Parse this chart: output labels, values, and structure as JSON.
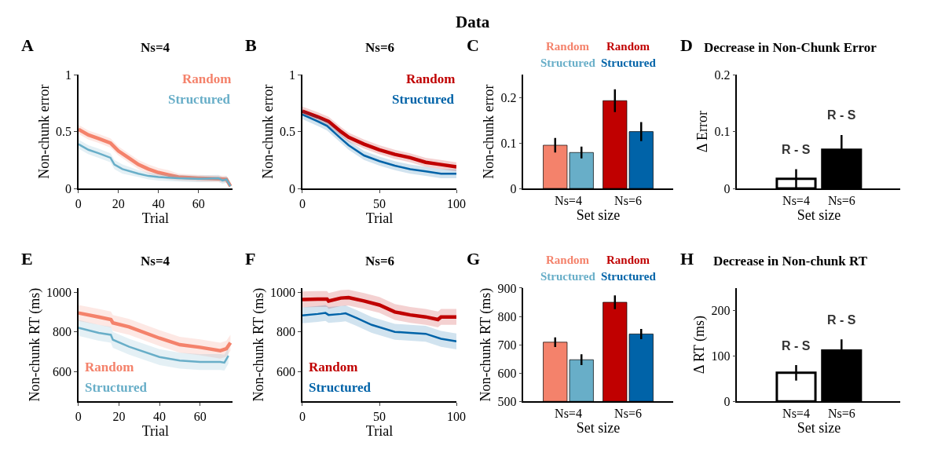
{
  "chart_data": [
    {
      "type": "line",
      "title": "Ns=4",
      "xlabel": "Trial",
      "ylabel": "Non-chunk error",
      "annotations": [
        "A",
        "Data"
      ],
      "legend": "top right",
      "xlim": [
        0,
        77
      ],
      "xticks": [
        0,
        20,
        40,
        60
      ],
      "ylim": [
        0,
        1
      ],
      "yticks": [
        0,
        0.5,
        1
      ],
      "series": [
        {
          "name": "Random",
          "color": "#f4826b",
          "x": [
            0,
            5,
            10,
            16,
            20,
            25,
            30,
            35,
            40,
            45,
            50,
            60,
            70,
            74,
            76
          ],
          "values": [
            0.52,
            0.47,
            0.44,
            0.4,
            0.33,
            0.27,
            0.21,
            0.17,
            0.14,
            0.12,
            0.1,
            0.09,
            0.085,
            0.08,
            0.02
          ],
          "lower": [
            0.48,
            0.43,
            0.4,
            0.36,
            0.29,
            0.23,
            0.17,
            0.13,
            0.1,
            0.08,
            0.07,
            0.06,
            0.055,
            0.05,
            0.0
          ],
          "upper": [
            0.56,
            0.51,
            0.48,
            0.44,
            0.37,
            0.31,
            0.25,
            0.21,
            0.18,
            0.16,
            0.13,
            0.12,
            0.115,
            0.11,
            0.05
          ]
        },
        {
          "name": "Structured",
          "color": "#68aec8",
          "x": [
            0,
            5,
            10,
            16,
            18,
            22,
            30,
            35,
            40,
            50,
            60,
            70,
            72,
            74,
            76
          ],
          "values": [
            0.39,
            0.34,
            0.31,
            0.27,
            0.21,
            0.17,
            0.13,
            0.11,
            0.1,
            0.09,
            0.085,
            0.09,
            0.07,
            0.08,
            0.02
          ],
          "lower": [
            0.35,
            0.3,
            0.27,
            0.23,
            0.17,
            0.13,
            0.1,
            0.08,
            0.07,
            0.06,
            0.055,
            0.06,
            0.04,
            0.05,
            0.0
          ],
          "upper": [
            0.43,
            0.38,
            0.35,
            0.31,
            0.25,
            0.21,
            0.16,
            0.14,
            0.13,
            0.12,
            0.115,
            0.12,
            0.1,
            0.11,
            0.05
          ]
        }
      ]
    },
    {
      "type": "line",
      "title": "Ns=6",
      "xlabel": "Trial",
      "ylabel": "Non-chunk error",
      "annotations": [
        "B"
      ],
      "legend": "top right",
      "xlim": [
        0,
        100
      ],
      "xticks": [
        0,
        50,
        100
      ],
      "ylim": [
        0,
        1
      ],
      "yticks": [
        0,
        0.5,
        1
      ],
      "series": [
        {
          "name": "Random",
          "color": "#c00000",
          "x": [
            0,
            10,
            17,
            25,
            30,
            40,
            50,
            60,
            70,
            80,
            90,
            100
          ],
          "values": [
            0.68,
            0.63,
            0.59,
            0.5,
            0.45,
            0.39,
            0.34,
            0.3,
            0.27,
            0.23,
            0.21,
            0.19
          ],
          "lower": [
            0.64,
            0.59,
            0.55,
            0.46,
            0.41,
            0.35,
            0.3,
            0.26,
            0.23,
            0.19,
            0.17,
            0.15
          ],
          "upper": [
            0.72,
            0.67,
            0.63,
            0.54,
            0.49,
            0.43,
            0.38,
            0.34,
            0.31,
            0.27,
            0.25,
            0.23
          ]
        },
        {
          "name": "Structured",
          "color": "#0063a8",
          "x": [
            0,
            10,
            16,
            25,
            30,
            40,
            50,
            60,
            70,
            80,
            90,
            100
          ],
          "values": [
            0.65,
            0.59,
            0.55,
            0.44,
            0.38,
            0.29,
            0.24,
            0.2,
            0.17,
            0.15,
            0.13,
            0.13
          ],
          "lower": [
            0.61,
            0.55,
            0.51,
            0.4,
            0.34,
            0.25,
            0.2,
            0.16,
            0.13,
            0.11,
            0.09,
            0.09
          ],
          "upper": [
            0.69,
            0.63,
            0.59,
            0.48,
            0.42,
            0.33,
            0.28,
            0.24,
            0.21,
            0.19,
            0.17,
            0.17
          ]
        }
      ]
    },
    {
      "type": "bar",
      "xlabel": "Set size",
      "ylabel": "Non-chunk error",
      "annotations": [
        "C"
      ],
      "legend": "top",
      "categories": [
        "Ns=4",
        "Ns=6"
      ],
      "ylim": [
        0,
        0.25
      ],
      "yticks": [
        0,
        0.1,
        0.2
      ],
      "series": [
        {
          "name": "Random",
          "colors": [
            "#f4826b",
            "#c00000"
          ],
          "values": [
            0.095,
            0.193
          ],
          "errors": [
            0.016,
            0.025
          ]
        },
        {
          "name": "Structured",
          "colors": [
            "#68aec8",
            "#0063a8"
          ],
          "values": [
            0.079,
            0.125
          ],
          "errors": [
            0.013,
            0.021
          ]
        }
      ]
    },
    {
      "type": "bar",
      "title": "Decrease in Non-Chunk Error",
      "xlabel": "Set size",
      "ylabel": "Δ Error",
      "annotations": [
        "D",
        "R - S",
        "R - S"
      ],
      "categories": [
        "Ns=4",
        "Ns=6"
      ],
      "ylim": [
        0,
        0.2
      ],
      "yticks": [
        0,
        0.1,
        0.2
      ],
      "values": [
        0.017,
        0.068
      ],
      "colors": [
        "#ffffff",
        "#000000"
      ],
      "errors": [
        0.017,
        0.026
      ]
    },
    {
      "type": "line",
      "title": "Ns=4",
      "xlabel": "Trial",
      "ylabel": "Non-chunk RT (ms)",
      "annotations": [
        "E"
      ],
      "legend": "bottom left",
      "xlim": [
        0,
        76
      ],
      "xticks": [
        0,
        20,
        40,
        60
      ],
      "ylim": [
        450,
        1020
      ],
      "yticks": [
        600,
        800,
        1000
      ],
      "series": [
        {
          "name": "Random",
          "color": "#f4826b",
          "x": [
            0,
            10,
            16,
            17,
            25,
            40,
            50,
            60,
            70,
            73,
            75
          ],
          "values": [
            895,
            875,
            862,
            845,
            825,
            768,
            735,
            722,
            705,
            715,
            745
          ],
          "lower": [
            855,
            835,
            822,
            805,
            785,
            728,
            695,
            682,
            665,
            675,
            705
          ],
          "upper": [
            935,
            915,
            902,
            885,
            865,
            808,
            775,
            762,
            745,
            755,
            785
          ]
        },
        {
          "name": "Structured",
          "color": "#68aec8",
          "x": [
            0,
            10,
            16,
            17,
            25,
            40,
            50,
            60,
            70,
            72,
            74
          ],
          "values": [
            820,
            795,
            785,
            760,
            725,
            673,
            655,
            648,
            648,
            645,
            680
          ],
          "lower": [
            780,
            755,
            745,
            720,
            685,
            633,
            615,
            608,
            608,
            605,
            640
          ],
          "upper": [
            860,
            835,
            825,
            800,
            765,
            713,
            695,
            688,
            688,
            685,
            720
          ]
        }
      ]
    },
    {
      "type": "line",
      "title": "Ns=6",
      "xlabel": "Trial",
      "ylabel": "Non-chunk RT (ms)",
      "annotations": [
        "F"
      ],
      "legend": "bottom left",
      "xlim": [
        0,
        100
      ],
      "xticks": [
        0,
        50,
        100
      ],
      "ylim": [
        450,
        1020
      ],
      "yticks": [
        600,
        800,
        1000
      ],
      "series": [
        {
          "name": "Random",
          "color": "#c00000",
          "x": [
            0,
            10,
            16,
            17,
            25,
            30,
            40,
            50,
            60,
            70,
            80,
            88,
            90,
            100
          ],
          "values": [
            963,
            965,
            965,
            955,
            970,
            972,
            955,
            935,
            900,
            885,
            875,
            862,
            875,
            875
          ],
          "lower": [
            923,
            925,
            925,
            915,
            930,
            932,
            915,
            895,
            860,
            845,
            835,
            822,
            835,
            835
          ],
          "upper": [
            1003,
            1005,
            1005,
            995,
            1010,
            1012,
            995,
            975,
            940,
            925,
            915,
            902,
            915,
            915
          ]
        },
        {
          "name": "Structured",
          "color": "#0063a8",
          "x": [
            0,
            10,
            15,
            17,
            25,
            28,
            35,
            45,
            60,
            70,
            80,
            90,
            100
          ],
          "values": [
            883,
            890,
            895,
            885,
            890,
            893,
            870,
            835,
            800,
            795,
            790,
            765,
            752
          ],
          "lower": [
            843,
            850,
            855,
            845,
            850,
            853,
            830,
            795,
            760,
            755,
            750,
            725,
            712
          ],
          "upper": [
            923,
            930,
            935,
            925,
            930,
            933,
            910,
            875,
            840,
            835,
            830,
            805,
            792
          ]
        }
      ]
    },
    {
      "type": "bar",
      "xlabel": "Set size",
      "ylabel": "Non-chunk RT (ms)",
      "annotations": [
        "G"
      ],
      "legend": "top",
      "categories": [
        "Ns=4",
        "Ns=6"
      ],
      "ylim": [
        500,
        900
      ],
      "yticks": [
        500,
        600,
        700,
        800,
        900
      ],
      "series": [
        {
          "name": "Random",
          "colors": [
            "#f4826b",
            "#c00000"
          ],
          "values": [
            709,
            850
          ],
          "errors": [
            17,
            24
          ]
        },
        {
          "name": "Structured",
          "colors": [
            "#68aec8",
            "#0063a8"
          ],
          "values": [
            647,
            738
          ],
          "errors": [
            19,
            18
          ]
        }
      ]
    },
    {
      "type": "bar",
      "title": "Decrease in Non-chunk RT",
      "xlabel": "Set size",
      "ylabel": "Δ RT (ms)",
      "annotations": [
        "H",
        "R - S",
        "R - S"
      ],
      "categories": [
        "Ns=4",
        "Ns=6"
      ],
      "ylim": [
        0,
        250
      ],
      "yticks": [
        0,
        100,
        200
      ],
      "values": [
        63,
        112
      ],
      "colors": [
        "#ffffff",
        "#000000"
      ],
      "errors": [
        17,
        25
      ]
    }
  ]
}
